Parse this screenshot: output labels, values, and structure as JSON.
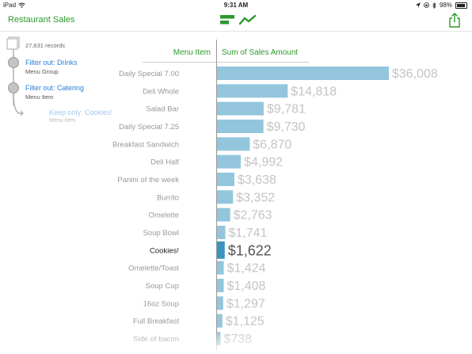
{
  "status_bar": {
    "device": "iPad",
    "time": "9:31 AM",
    "battery": "98%"
  },
  "header": {
    "title": "Restaurant Sales"
  },
  "filters": {
    "records": "27,631 records",
    "items": [
      {
        "label": "Filter out: Drinks",
        "sub": "Menu Group"
      },
      {
        "label": "Filter out: Catering",
        "sub": "Menu Item"
      },
      {
        "label": "Keep only: Cookies!",
        "sub": "Menu Item"
      }
    ]
  },
  "colors": {
    "accent": "#2a9a2a",
    "link": "#2a7fd4",
    "bar": "#93c6dc",
    "bar_highlight": "#3a94bf",
    "value_text": "#c4c4c4",
    "value_text_highlight": "#555555"
  },
  "chart_data": {
    "type": "bar",
    "orientation": "horizontal",
    "xlabel": "Menu Item",
    "ylabel": "Sum of Sales Amount",
    "highlighted": "Cookies!",
    "categories": [
      "Daily Special 7.00",
      "Deli Whole",
      "Salad Bar",
      "Daily Special 7.25",
      "Breakfast Sandwich",
      "Deli Half",
      "Panini of the week",
      "Burrito",
      "Omelette",
      "Soup Bowl",
      "Cookies!",
      "Omelette/Toast",
      "Soup Cup",
      "16oz Soup",
      "Full Breakfast",
      "Side of bacon"
    ],
    "values": [
      36008,
      14818,
      9781,
      9730,
      6870,
      4992,
      3638,
      3352,
      2763,
      1741,
      1622,
      1424,
      1408,
      1297,
      1125,
      738
    ],
    "labels": [
      "$36,008",
      "$14,818",
      "$9,781",
      "$9,730",
      "$6,870",
      "$4,992",
      "$3,638",
      "$3,352",
      "$2,763",
      "$1,741",
      "$1,622",
      "$1,424",
      "$1,408",
      "$1,297",
      "$1,125",
      "$738"
    ]
  }
}
